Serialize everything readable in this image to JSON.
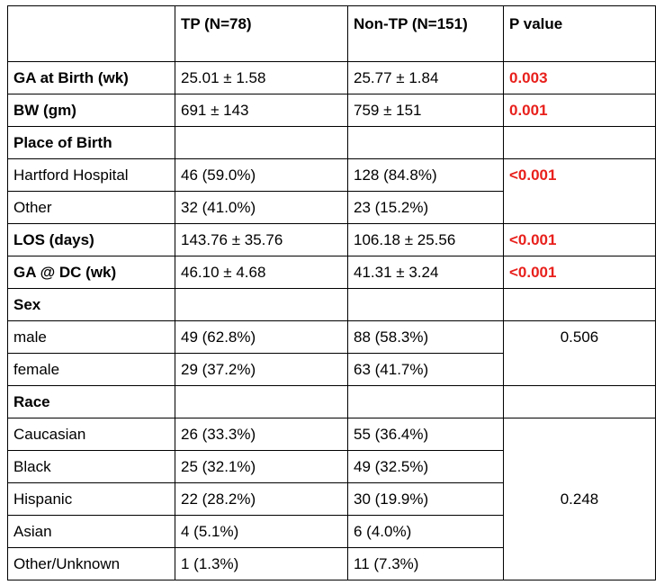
{
  "table": {
    "headers": [
      "",
      "TP (N=78)",
      "Non-TP (N=151)",
      "P value"
    ],
    "rows": {
      "ga_birth": {
        "label": "GA at Birth (wk)",
        "tp": "25.01 ± 1.58",
        "nontp": "25.77 ± 1.84",
        "p": "0.003"
      },
      "bw": {
        "label": "BW (gm)",
        "tp": "691 ± 143",
        "nontp": "759 ± 151",
        "p": "0.001"
      },
      "place": {
        "label": "Place of Birth"
      },
      "hartford": {
        "label": "Hartford Hospital",
        "tp": "46 (59.0%)",
        "nontp": "128 (84.8%)",
        "p": "<0.001"
      },
      "other_place": {
        "label": "Other",
        "tp": "32 (41.0%)",
        "nontp": "23 (15.2%)"
      },
      "los": {
        "label": "LOS (days)",
        "tp": "143.76 ± 35.76",
        "nontp": "106.18 ± 25.56",
        "p": "<0.001"
      },
      "ga_dc": {
        "label": "GA @ DC (wk)",
        "tp": "46.10 ± 4.68",
        "nontp": "41.31 ± 3.24",
        "p": "<0.001"
      },
      "sex": {
        "label": "Sex"
      },
      "male": {
        "label": "male",
        "tp": "49 (62.8%)",
        "nontp": "88 (58.3%)",
        "p": "0.506"
      },
      "female": {
        "label": "female",
        "tp": "29 (37.2%)",
        "nontp": "63 (41.7%)"
      },
      "race": {
        "label": "Race"
      },
      "caucasian": {
        "label": "Caucasian",
        "tp": "26 (33.3%)",
        "nontp": "55 (36.4%)"
      },
      "black": {
        "label": "Black",
        "tp": "25 (32.1%)",
        "nontp": "49 (32.5%)"
      },
      "hispanic": {
        "label": "Hispanic",
        "tp": "22 (28.2%)",
        "nontp": "30 (19.9%)",
        "p": "0.248"
      },
      "asian": {
        "label": "Asian",
        "tp": "4 (5.1%)",
        "nontp": "6 (4.0%)"
      },
      "other_race": {
        "label": "Other/Unknown",
        "tp": "1 (1.3%)",
        "nontp": "11 (7.3%)"
      }
    }
  },
  "colors": {
    "significant": "#e8201c",
    "border": "#000000",
    "text": "#000000"
  }
}
